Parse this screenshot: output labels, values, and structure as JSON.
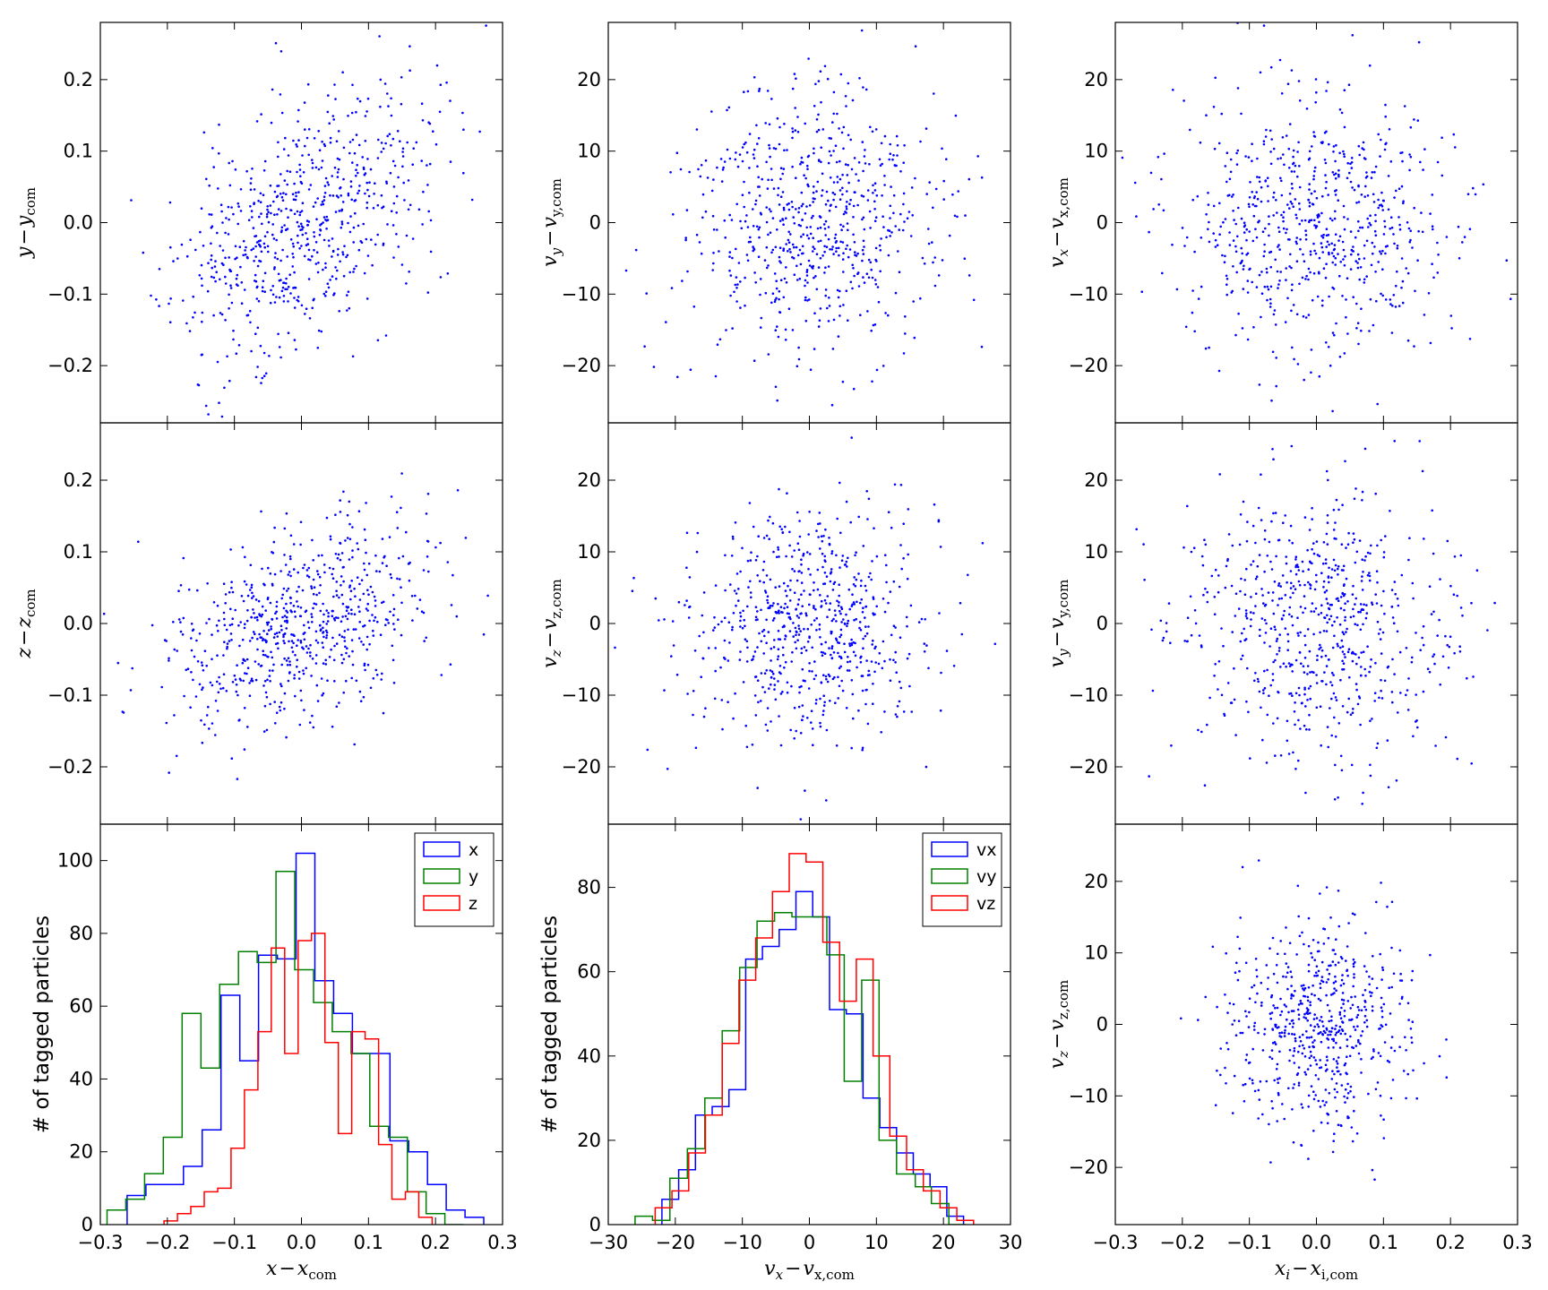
{
  "colors": {
    "blue": "#0000ff",
    "green": "#008000",
    "red": "#ff0000",
    "axis": "#000000"
  },
  "chart_data": [
    {
      "id": "p00",
      "type": "scatter",
      "xlim": [
        -0.3,
        0.3
      ],
      "ylim": [
        -0.28,
        0.28
      ],
      "yticks": [
        -0.2,
        -0.1,
        0.0,
        0.1,
        0.2
      ],
      "ytick_labels": [
        "−0.2",
        "−0.1",
        "0.0",
        "0.1",
        "0.2"
      ],
      "ylabel": {
        "main": "y",
        "op": "−",
        "main2": "y",
        "sub": "com"
      },
      "n": 680,
      "sd": [
        0.095,
        0.095
      ],
      "corr": 0.45,
      "seed": 11
    },
    {
      "id": "p01",
      "type": "scatter",
      "xlim": [
        -30,
        30
      ],
      "ylim": [
        -28,
        28
      ],
      "yticks": [
        -20,
        -10,
        0,
        10,
        20
      ],
      "ytick_labels": [
        "−20",
        "−10",
        "0",
        "10",
        "20"
      ],
      "ylabel": {
        "main": "v",
        "msub": "y",
        "op": "−",
        "main2": "v",
        "sub": "y,com"
      },
      "n": 680,
      "sd": [
        9,
        9
      ],
      "corr": 0,
      "seed": 23
    },
    {
      "id": "p02",
      "type": "scatter",
      "xlim": [
        -0.3,
        0.3
      ],
      "ylim": [
        -28,
        28
      ],
      "yticks": [
        -20,
        -10,
        0,
        10,
        20
      ],
      "ytick_labels": [
        "−20",
        "−10",
        "0",
        "10",
        "20"
      ],
      "ylabel": {
        "main": "v",
        "msub": "x",
        "op": "−",
        "main2": "v",
        "sub": "x,com"
      },
      "n": 680,
      "sd": [
        0.1,
        9
      ],
      "corr": 0,
      "seed": 37
    },
    {
      "id": "p10",
      "type": "scatter",
      "xlim": [
        -0.3,
        0.3
      ],
      "ylim": [
        -0.28,
        0.28
      ],
      "yticks": [
        -0.2,
        -0.1,
        0.0,
        0.1,
        0.2
      ],
      "ytick_labels": [
        "−0.2",
        "−0.1",
        "0.0",
        "0.1",
        "0.2"
      ],
      "ylabel": {
        "main": "z",
        "op": "−",
        "main2": "z",
        "sub": "com"
      },
      "n": 680,
      "sd": [
        0.095,
        0.075
      ],
      "corr": 0.4,
      "seed": 41
    },
    {
      "id": "p11",
      "type": "scatter",
      "xlim": [
        -30,
        30
      ],
      "ylim": [
        -28,
        28
      ],
      "yticks": [
        -20,
        -10,
        0,
        10,
        20
      ],
      "ytick_labels": [
        "−20",
        "−10",
        "0",
        "10",
        "20"
      ],
      "ylabel": {
        "main": "v",
        "msub": "z",
        "op": "−",
        "main2": "v",
        "sub": "z,com"
      },
      "n": 680,
      "sd": [
        8.5,
        8
      ],
      "corr": 0,
      "seed": 53
    },
    {
      "id": "p12",
      "type": "scatter",
      "xlim": [
        -0.3,
        0.3
      ],
      "ylim": [
        -28,
        28
      ],
      "yticks": [
        -20,
        -10,
        0,
        10,
        20
      ],
      "ytick_labels": [
        "−20",
        "−10",
        "0",
        "10",
        "20"
      ],
      "ylabel": {
        "main": "v",
        "msub": "y",
        "op": "−",
        "main2": "v",
        "sub": "y,com"
      },
      "n": 680,
      "sd": [
        0.1,
        9
      ],
      "corr": 0,
      "seed": 67
    },
    {
      "id": "p20",
      "type": "histogram",
      "xlim": [
        -0.3,
        0.3
      ],
      "ylim": [
        0,
        110
      ],
      "xticks": [
        -0.3,
        -0.2,
        -0.1,
        0.0,
        0.1,
        0.2,
        0.3
      ],
      "xtick_labels": [
        "−0.3",
        "−0.2",
        "−0.1",
        "0.0",
        "0.1",
        "0.2",
        "0.3"
      ],
      "yticks": [
        0,
        20,
        40,
        60,
        80,
        100
      ],
      "ytick_labels": [
        "0",
        "20",
        "40",
        "60",
        "80",
        "100"
      ],
      "ylabel": "# of tagged particles",
      "xlabel": {
        "main": "x",
        "op": "−",
        "main2": "x",
        "sub": "com"
      },
      "legend": {
        "position": "top-right",
        "entries": [
          "x",
          "y",
          "z"
        ]
      },
      "series": [
        {
          "name": "x",
          "color": "#0000ff",
          "edges": [
            -0.26,
            -0.232,
            -0.204,
            -0.176,
            -0.148,
            -0.12,
            -0.092,
            -0.064,
            -0.036,
            -0.008,
            0.02,
            0.048,
            0.076,
            0.104,
            0.132,
            0.16,
            0.188,
            0.216,
            0.244,
            0.272
          ],
          "counts": [
            8,
            11,
            11,
            16,
            26,
            63,
            45,
            74,
            73,
            102,
            67,
            58,
            47,
            47,
            23,
            20,
            11,
            4,
            2
          ]
        },
        {
          "name": "y",
          "color": "#008000",
          "edges": [
            -0.29,
            -0.262,
            -0.234,
            -0.206,
            -0.178,
            -0.15,
            -0.122,
            -0.094,
            -0.066,
            -0.038,
            -0.01,
            0.018,
            0.046,
            0.074,
            0.102,
            0.13,
            0.158,
            0.186,
            0.214,
            0.242
          ],
          "counts": [
            4,
            7,
            14,
            24,
            58,
            43,
            66,
            75,
            72,
            97,
            70,
            61,
            53,
            47,
            27,
            24,
            9,
            3,
            0
          ]
        },
        {
          "name": "z",
          "color": "#ff0000",
          "edges": [
            -0.205,
            -0.185,
            -0.165,
            -0.145,
            -0.125,
            -0.105,
            -0.085,
            -0.065,
            -0.045,
            -0.025,
            -0.005,
            0.015,
            0.035,
            0.055,
            0.075,
            0.095,
            0.115,
            0.135,
            0.155,
            0.175,
            0.195
          ],
          "counts": [
            1,
            3,
            5,
            9,
            10,
            21,
            37,
            53,
            76,
            47,
            78,
            80,
            50,
            25,
            53,
            51,
            22,
            7,
            9,
            2
          ]
        }
      ]
    },
    {
      "id": "p21",
      "type": "histogram",
      "xlim": [
        -30,
        30
      ],
      "ylim": [
        0,
        95
      ],
      "xticks": [
        -30,
        -20,
        -10,
        0,
        10,
        20,
        30
      ],
      "xtick_labels": [
        "−30",
        "−20",
        "−10",
        "0",
        "10",
        "20",
        "30"
      ],
      "yticks": [
        0,
        20,
        40,
        60,
        80
      ],
      "ytick_labels": [
        "0",
        "20",
        "40",
        "60",
        "80"
      ],
      "ylabel": "# of tagged particles",
      "xlabel": {
        "main": "v",
        "msub": "x",
        "op": "−",
        "main2": "v",
        "sub": "x,com"
      },
      "legend": {
        "position": "top-right",
        "entries": [
          "vx",
          "vy",
          "vz"
        ]
      },
      "series": [
        {
          "name": "vx",
          "color": "#0000ff",
          "edges": [
            -22,
            -19.5,
            -17,
            -14.5,
            -12,
            -9.5,
            -7,
            -4.5,
            -2,
            0.5,
            3,
            5.5,
            8,
            10.5,
            13,
            15.5,
            18,
            20.5,
            23
          ],
          "counts": [
            6,
            13,
            26,
            28,
            32,
            63,
            66,
            70,
            79,
            73,
            51,
            50,
            30,
            23,
            17,
            12,
            9,
            2
          ]
        },
        {
          "name": "vy",
          "color": "#008000",
          "edges": [
            -26,
            -23.4,
            -20.8,
            -18.2,
            -15.6,
            -13,
            -10.4,
            -7.8,
            -5.2,
            -2.6,
            0,
            2.6,
            5.2,
            7.8,
            10.4,
            13,
            15.8,
            18.2,
            20.8,
            23.4
          ],
          "counts": [
            2,
            1,
            11,
            18,
            30,
            46,
            61,
            72,
            74,
            73,
            73,
            64,
            34,
            58,
            20,
            12,
            9,
            5,
            0
          ]
        },
        {
          "name": "vz",
          "color": "#ff0000",
          "edges": [
            -23,
            -20.5,
            -18,
            -15.5,
            -13,
            -10.5,
            -8,
            -5.5,
            -3,
            -0.5,
            2,
            4.5,
            7,
            9.5,
            12,
            14.5,
            17,
            19.5,
            22,
            24.5
          ],
          "counts": [
            4,
            8,
            17,
            26,
            43,
            58,
            68,
            79,
            88,
            86,
            67,
            53,
            63,
            40,
            21,
            13,
            8,
            4,
            1
          ]
        }
      ]
    },
    {
      "id": "p22",
      "type": "scatter",
      "xlim": [
        -0.3,
        0.3
      ],
      "ylim": [
        -28,
        28
      ],
      "xticks": [
        -0.3,
        -0.2,
        -0.1,
        0.0,
        0.1,
        0.2,
        0.3
      ],
      "xtick_labels": [
        "−0.3",
        "−0.2",
        "−0.1",
        "0.0",
        "0.1",
        "0.2",
        "0.3"
      ],
      "yticks": [
        -20,
        -10,
        0,
        10,
        20
      ],
      "ytick_labels": [
        "−20",
        "−10",
        "0",
        "10",
        "20"
      ],
      "ylabel": {
        "main": "v",
        "msub": "z",
        "op": "−",
        "main2": "v",
        "sub": "z,com"
      },
      "xlabel": {
        "main": "x",
        "msub": "i",
        "op": "−",
        "main2": "x",
        "sub": "i,com"
      },
      "n": 600,
      "sd": [
        0.07,
        7.5
      ],
      "corr": 0,
      "seed": 79
    }
  ]
}
